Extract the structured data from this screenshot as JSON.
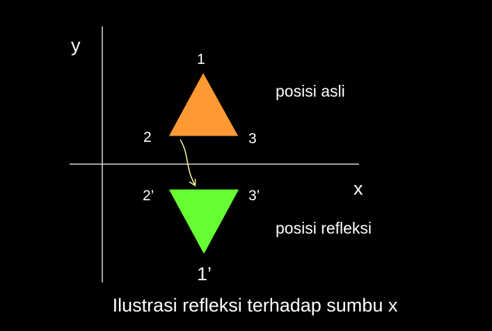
{
  "axes": {
    "y_label": "y",
    "x_label": "x"
  },
  "original_triangle": {
    "vertex_labels": [
      "1",
      "2",
      "3"
    ],
    "caption": "posisi asli",
    "color": "#ff9933"
  },
  "reflected_triangle": {
    "vertex_labels": [
      "1’",
      "2’",
      "3’"
    ],
    "caption": "posisi refleksi",
    "color": "#66ff33"
  },
  "arrow_color": "#ffff99",
  "title": "Ilustrasi refleksi terhadap sumbu x"
}
